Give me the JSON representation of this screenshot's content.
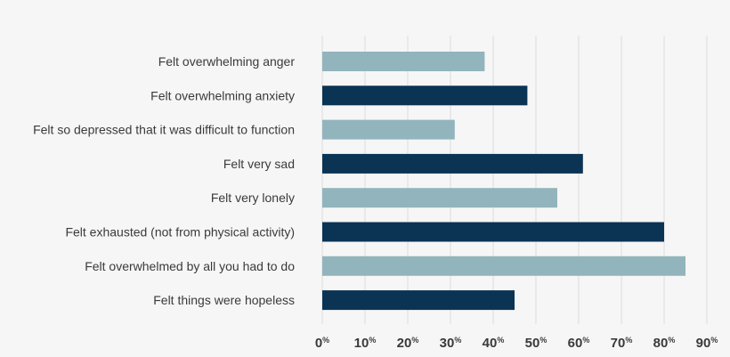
{
  "chart_data": {
    "type": "bar",
    "orientation": "horizontal",
    "categories": [
      "Felt overwhelming anger",
      "Felt overwhelming anxiety",
      "Felt so depressed that it was difficult to function",
      "Felt very sad",
      "Felt very lonely",
      "Felt exhausted (not from physical activity)",
      "Felt overwhelmed by all you had to do",
      "Felt things were hopeless"
    ],
    "values": [
      38,
      48,
      31,
      61,
      55,
      80,
      85,
      45
    ],
    "bar_colors": [
      "#92b4bd",
      "#0b3354",
      "#92b4bd",
      "#0b3354",
      "#92b4bd",
      "#0b3354",
      "#92b4bd",
      "#0b3354"
    ],
    "x_ticks": [
      0,
      10,
      20,
      30,
      40,
      50,
      60,
      70,
      80,
      90
    ],
    "tick_suffix": "%",
    "xlim": [
      0,
      90
    ],
    "grid": true,
    "gridline_color": "#dcdcdc",
    "title": "",
    "xlabel": "",
    "ylabel": ""
  }
}
